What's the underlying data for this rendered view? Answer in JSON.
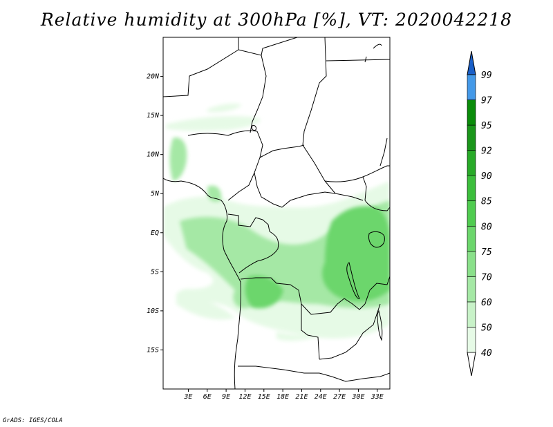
{
  "title": "Relative humidity at 300hPa [%], VT: 2020042218",
  "credit": "GrADS: IGES/COLA",
  "map": {
    "lon_range": [
      -1,
      35
    ],
    "lat_range": [
      -20,
      25
    ],
    "lat_ticks": [
      {
        "value": 20,
        "label": "20N"
      },
      {
        "value": 15,
        "label": "15N"
      },
      {
        "value": 10,
        "label": "10N"
      },
      {
        "value": 5,
        "label": "5N"
      },
      {
        "value": 0,
        "label": "EQ"
      },
      {
        "value": -5,
        "label": "5S"
      },
      {
        "value": -10,
        "label": "10S"
      },
      {
        "value": -15,
        "label": "15S"
      }
    ],
    "lon_ticks": [
      {
        "value": 3,
        "label": "3E"
      },
      {
        "value": 6,
        "label": "6E"
      },
      {
        "value": 9,
        "label": "9E"
      },
      {
        "value": 12,
        "label": "12E"
      },
      {
        "value": 15,
        "label": "15E"
      },
      {
        "value": 18,
        "label": "18E"
      },
      {
        "value": 21,
        "label": "21E"
      },
      {
        "value": 24,
        "label": "24E"
      },
      {
        "value": 27,
        "label": "27E"
      },
      {
        "value": 30,
        "label": "30E"
      },
      {
        "value": 33,
        "label": "33E"
      }
    ]
  },
  "colorbar": {
    "levels": [
      {
        "label": "40",
        "color": "#e6fae6"
      },
      {
        "label": "50",
        "color": "#c8f2c8"
      },
      {
        "label": "60",
        "color": "#a5e8a5"
      },
      {
        "label": "70",
        "color": "#8ae08a"
      },
      {
        "label": "75",
        "color": "#6cd66c"
      },
      {
        "label": "80",
        "color": "#50cc50"
      },
      {
        "label": "85",
        "color": "#3cbe3c"
      },
      {
        "label": "90",
        "color": "#28aa28"
      },
      {
        "label": "92",
        "color": "#1a961a"
      },
      {
        "label": "95",
        "color": "#0a8c0a"
      },
      {
        "label": "97",
        "color": "#4499e8"
      },
      {
        "label": "99",
        "color": "#2277dd"
      }
    ],
    "top_color": "#1a5fc8"
  },
  "colors": {
    "rh_40": "#e6fae6",
    "rh_50": "#c8f2c8",
    "rh_60": "#a5e8a5",
    "rh_70": "#8ae08a",
    "rh_75": "#6cd66c"
  }
}
